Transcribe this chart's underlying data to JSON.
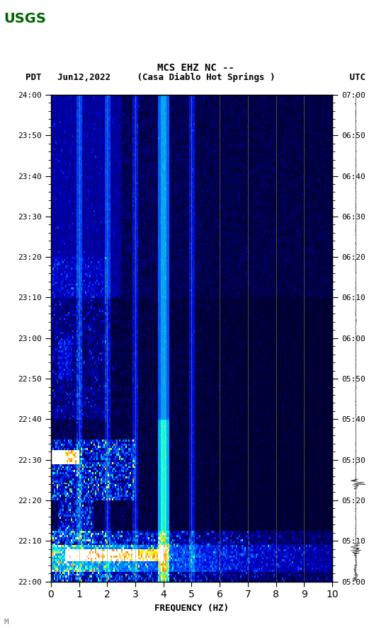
{
  "title_line1": "MCS EHZ NC --",
  "title_line2": "PDT   Jun12,2022     (Casa Diablo Hot Springs )              UTC",
  "xlabel": "FREQUENCY (HZ)",
  "xlim": [
    0,
    10
  ],
  "ylim_pdt": [
    "22:00",
    "24:00"
  ],
  "ylim_utc": [
    "05:00",
    "07:00"
  ],
  "yticks_pdt": [
    "22:00",
    "22:10",
    "22:20",
    "22:30",
    "22:40",
    "22:50",
    "23:00",
    "23:10",
    "23:20",
    "23:30",
    "23:40",
    "23:50",
    "24:00"
  ],
  "yticks_utc": [
    "05:00",
    "05:10",
    "05:20",
    "05:30",
    "05:40",
    "05:50",
    "06:00",
    "06:10",
    "06:20",
    "06:30",
    "06:40",
    "06:50",
    "07:00"
  ],
  "xticks": [
    0,
    1,
    2,
    3,
    4,
    5,
    6,
    7,
    8,
    9,
    10
  ],
  "vlines_x": [
    1,
    2,
    3,
    4,
    5,
    6,
    7,
    8,
    9
  ],
  "bg_color": "white",
  "spectrogram_bg": "#000080",
  "usgs_green": "#006400",
  "font_color": "black",
  "watermark": "M",
  "figsize": [
    5.52,
    8.93
  ],
  "dpi": 100
}
